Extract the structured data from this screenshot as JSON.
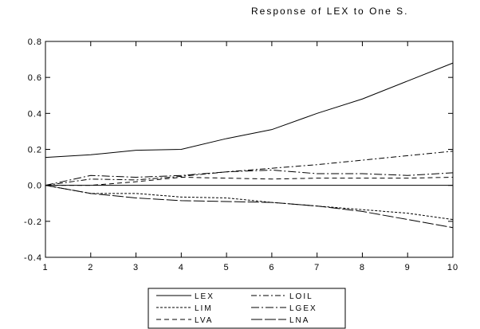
{
  "chart_data": {
    "type": "line",
    "title": "Response of LEX to One S.",
    "xlabel": "",
    "ylabel": "",
    "x": [
      1,
      2,
      3,
      4,
      5,
      6,
      7,
      8,
      9,
      10
    ],
    "xlim": [
      1,
      10
    ],
    "ylim": [
      -0.4,
      0.8
    ],
    "yticks": [
      -0.4,
      -0.2,
      0.0,
      0.2,
      0.4,
      0.6,
      0.8
    ],
    "ytick_labels": [
      "-0.4",
      "-0.2",
      "0.0",
      "0.2",
      "0.4",
      "0.6",
      "0.8"
    ],
    "xtick_labels": [
      "1",
      "2",
      "3",
      "4",
      "5",
      "6",
      "7",
      "8",
      "9",
      "10"
    ],
    "zero_line": true,
    "grid": false,
    "legend_position": "bottom",
    "series": [
      {
        "name": "LEX",
        "dash": "solid",
        "values": [
          0.155,
          0.17,
          0.195,
          0.2,
          0.26,
          0.31,
          0.4,
          0.48,
          0.58,
          0.68
        ]
      },
      {
        "name": "LOIL",
        "dash": "dash-dot",
        "values": [
          0.0,
          0.035,
          0.03,
          0.05,
          0.075,
          0.095,
          0.115,
          0.14,
          0.165,
          0.19
        ]
      },
      {
        "name": "LIM",
        "dash": "short-dash",
        "values": [
          0.0,
          -0.045,
          -0.045,
          -0.065,
          -0.07,
          -0.095,
          -0.115,
          -0.135,
          -0.155,
          -0.19
        ]
      },
      {
        "name": "LGEX",
        "dash": "long-dash-dot",
        "values": [
          0.0,
          0.055,
          0.045,
          0.055,
          0.075,
          0.085,
          0.065,
          0.065,
          0.055,
          0.07
        ]
      },
      {
        "name": "LVA",
        "dash": "dash",
        "values": [
          0.0,
          0.0,
          0.02,
          0.045,
          0.04,
          0.035,
          0.04,
          0.04,
          0.04,
          0.045
        ]
      },
      {
        "name": "LNA",
        "dash": "long-dash",
        "values": [
          0.0,
          -0.045,
          -0.07,
          -0.085,
          -0.09,
          -0.095,
          -0.115,
          -0.145,
          -0.19,
          -0.235
        ]
      }
    ]
  }
}
